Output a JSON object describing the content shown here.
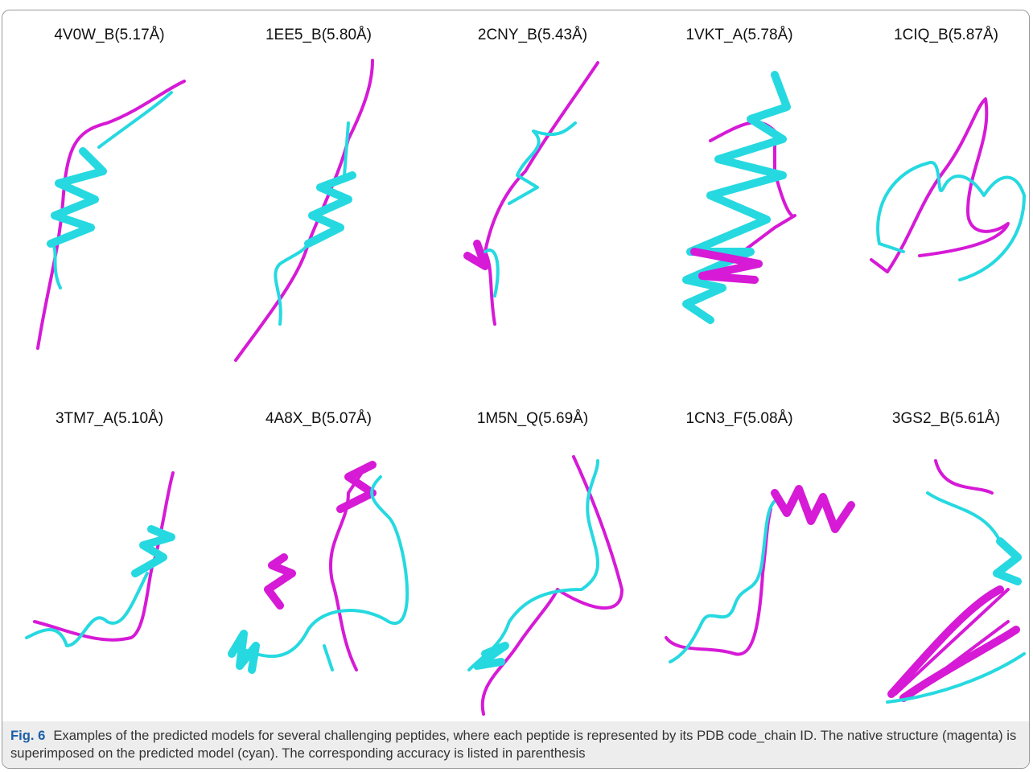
{
  "figure": {
    "panels": [
      {
        "label": "4V0W_B(5.17Å)"
      },
      {
        "label": "1EE5_B(5.80Å)"
      },
      {
        "label": "2CNY_B(5.43Å)"
      },
      {
        "label": "1VKT_A(5.78Å)"
      },
      {
        "label": "1CIQ_B(5.87Å)"
      },
      {
        "label": "3TM7_A(5.10Å)"
      },
      {
        "label": "4A8X_B(5.07Å)"
      },
      {
        "label": "1M5N_Q(5.69Å)"
      },
      {
        "label": "1CN3_F(5.08Å)"
      },
      {
        "label": "3GS2_B(5.61Å)"
      }
    ],
    "caption": {
      "label": "Fig. 6",
      "text": "Examples of the predicted models for several challenging peptides, where each peptide is represented by its PDB code_chain ID. The native structure (magenta) is superimposed on the predicted model (cyan). The corresponding accuracy is listed in parenthesis"
    }
  }
}
